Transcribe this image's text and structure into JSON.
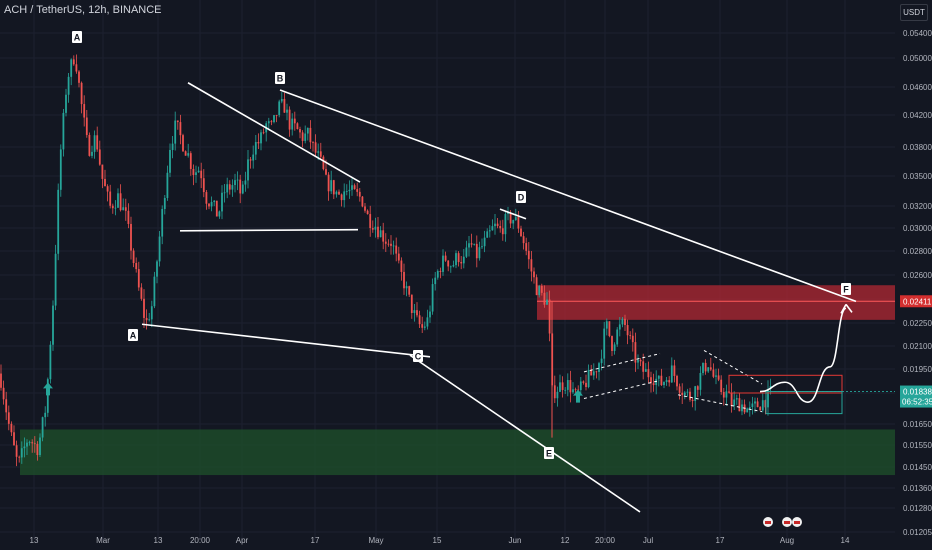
{
  "header": {
    "symbol_title": "ACH / TetherUS, 12h, BINANCE",
    "currency": "USDT"
  },
  "colors": {
    "background": "#131722",
    "up": "#26a69a",
    "down": "#ef5350",
    "drawing": "#ffffff",
    "resistance_zone": "#b22833",
    "support_zone": "#1e4d2b",
    "target_label": "#d32f2f",
    "price_label": "#26a69a"
  },
  "chart_data": {
    "type": "candlestick",
    "y_scale": "log",
    "ylim": [
      0.01205,
      0.0565
    ],
    "y_ticks": [
      "0.05400",
      "0.05000",
      "0.04600",
      "0.04200",
      "0.03800",
      "0.03500",
      "0.03200",
      "0.03000",
      "0.02800",
      "0.02600",
      "0.02400",
      "0.02250",
      "0.02100",
      "0.01950",
      "0.01800",
      "0.01650",
      "0.01550",
      "0.01450",
      "0.01360",
      "0.01280",
      "0.01205"
    ],
    "x_ticks": [
      "13",
      "Mar",
      "13",
      "20:00",
      "Apr",
      "17",
      "May",
      "15",
      "Jun",
      "12",
      "20:00",
      "Jul",
      "17",
      "Aug",
      "14"
    ],
    "price_path": [
      [
        0,
        0.0194
      ],
      [
        10,
        0.0163
      ],
      [
        18,
        0.0147
      ],
      [
        28,
        0.016
      ],
      [
        38,
        0.0155
      ],
      [
        46,
        0.0176
      ],
      [
        53,
        0.024
      ],
      [
        60,
        0.037
      ],
      [
        67,
        0.047
      ],
      [
        75,
        0.0508
      ],
      [
        82,
        0.043
      ],
      [
        88,
        0.038
      ],
      [
        96,
        0.0395
      ],
      [
        102,
        0.035
      ],
      [
        110,
        0.032
      ],
      [
        118,
        0.033
      ],
      [
        126,
        0.031
      ],
      [
        134,
        0.027
      ],
      [
        140,
        0.0245
      ],
      [
        146,
        0.0225
      ],
      [
        152,
        0.0238
      ],
      [
        158,
        0.028
      ],
      [
        164,
        0.033
      ],
      [
        170,
        0.0385
      ],
      [
        176,
        0.041
      ],
      [
        182,
        0.039
      ],
      [
        188,
        0.0375
      ],
      [
        194,
        0.0355
      ],
      [
        200,
        0.036
      ],
      [
        206,
        0.033
      ],
      [
        212,
        0.0322
      ],
      [
        218,
        0.0312
      ],
      [
        224,
        0.0335
      ],
      [
        230,
        0.034
      ],
      [
        236,
        0.0345
      ],
      [
        242,
        0.033
      ],
      [
        248,
        0.0365
      ],
      [
        254,
        0.0385
      ],
      [
        260,
        0.039
      ],
      [
        266,
        0.041
      ],
      [
        272,
        0.0405
      ],
      [
        278,
        0.043
      ],
      [
        284,
        0.0435
      ],
      [
        290,
        0.041
      ],
      [
        296,
        0.0405
      ],
      [
        302,
        0.0395
      ],
      [
        308,
        0.0398
      ],
      [
        314,
        0.038
      ],
      [
        320,
        0.0368
      ],
      [
        326,
        0.0345
      ],
      [
        332,
        0.034
      ],
      [
        338,
        0.0332
      ],
      [
        344,
        0.0336
      ],
      [
        350,
        0.0335
      ],
      [
        356,
        0.0332
      ],
      [
        362,
        0.0328
      ],
      [
        368,
        0.031
      ],
      [
        374,
        0.0305
      ],
      [
        380,
        0.0297
      ],
      [
        386,
        0.029
      ],
      [
        392,
        0.0288
      ],
      [
        398,
        0.0268
      ],
      [
        404,
        0.0255
      ],
      [
        410,
        0.024
      ],
      [
        416,
        0.0228
      ],
      [
        422,
        0.0222
      ],
      [
        428,
        0.0228
      ],
      [
        434,
        0.0255
      ],
      [
        440,
        0.0268
      ],
      [
        446,
        0.0275
      ],
      [
        452,
        0.0268
      ],
      [
        458,
        0.0277
      ],
      [
        464,
        0.0272
      ],
      [
        470,
        0.0288
      ],
      [
        476,
        0.0276
      ],
      [
        482,
        0.0284
      ],
      [
        488,
        0.0292
      ],
      [
        494,
        0.0302
      ],
      [
        500,
        0.0298
      ],
      [
        506,
        0.0307
      ],
      [
        512,
        0.031
      ],
      [
        518,
        0.0304
      ],
      [
        524,
        0.0288
      ],
      [
        530,
        0.0268
      ],
      [
        536,
        0.0252
      ],
      [
        542,
        0.0245
      ],
      [
        548,
        0.024
      ],
      [
        552,
        0.0183
      ],
      [
        558,
        0.0186
      ],
      [
        564,
        0.0189
      ],
      [
        570,
        0.0187
      ],
      [
        576,
        0.0181
      ],
      [
        582,
        0.0186
      ],
      [
        588,
        0.0191
      ],
      [
        594,
        0.0195
      ],
      [
        600,
        0.0202
      ],
      [
        606,
        0.0225
      ],
      [
        612,
        0.0212
      ],
      [
        618,
        0.0221
      ],
      [
        624,
        0.0226
      ],
      [
        630,
        0.0214
      ],
      [
        636,
        0.0202
      ],
      [
        642,
        0.0196
      ],
      [
        648,
        0.0194
      ],
      [
        654,
        0.0192
      ],
      [
        660,
        0.0188
      ],
      [
        666,
        0.0191
      ],
      [
        672,
        0.0196
      ],
      [
        678,
        0.0189
      ],
      [
        684,
        0.0183
      ],
      [
        690,
        0.0181
      ],
      [
        696,
        0.0186
      ],
      [
        702,
        0.0195
      ],
      [
        708,
        0.0201
      ],
      [
        714,
        0.0191
      ],
      [
        720,
        0.0185
      ],
      [
        726,
        0.0183
      ],
      [
        732,
        0.0177
      ],
      [
        738,
        0.0178
      ],
      [
        744,
        0.0176
      ],
      [
        750,
        0.0173
      ],
      [
        756,
        0.0176
      ],
      [
        762,
        0.0178
      ],
      [
        768,
        0.0181
      ],
      [
        772,
        0.01838
      ]
    ],
    "drawings": {
      "trendlines": [
        {
          "from": [
            280,
            0.0455
          ],
          "to": [
            856,
            0.0241
          ]
        },
        {
          "from": [
            142,
            0.0225
          ],
          "to": [
            430,
            0.0204
          ]
        },
        {
          "from": [
            410,
            0.0205
          ],
          "to": [
            640,
            0.0128
          ]
        },
        {
          "from": [
            188,
            0.0465
          ],
          "to": [
            360,
            0.0345
          ]
        },
        {
          "from": [
            180,
            0.0298
          ],
          "to": [
            358,
            0.0299
          ]
        },
        {
          "from": [
            500,
            0.0318
          ],
          "to": [
            526,
            0.0309
          ]
        }
      ],
      "resistance_zone": {
        "x0": 537,
        "x1": 895,
        "y_top": 0.0253,
        "y_bottom": 0.0228,
        "midline": 0.02411
      },
      "support_zone": {
        "x0": 20,
        "x1": 895,
        "y_top": 0.0164,
        "y_bottom": 0.0143
      },
      "channel_1": [
        [
          [
            584,
            0.0195
          ],
          [
            660,
            0.0206
          ]
        ],
        [
          [
            584,
            0.018
          ],
          [
            660,
            0.019
          ]
        ]
      ],
      "channel_2": [
        [
          [
            678,
            0.0182
          ],
          [
            762,
            0.0173
          ]
        ],
        [
          [
            704,
            0.0208
          ],
          [
            762,
            0.0188
          ]
        ]
      ],
      "target_box_red": {
        "x0": 729,
        "x1": 842,
        "y0": 0.0193,
        "y1": 0.0183
      },
      "target_box_green": {
        "x0": 766,
        "x1": 842,
        "y0": 0.01838,
        "y1": 0.0172
      },
      "projection_path": [
        [
          760,
          0.01838
        ],
        [
          785,
          0.0189
        ],
        [
          808,
          0.0178
        ],
        [
          830,
          0.0198
        ],
        [
          846,
          0.0236
        ]
      ],
      "arrows_up": [
        [
          48,
          0.0185
        ],
        [
          578,
          0.0181
        ]
      ]
    },
    "wave_labels": [
      "A",
      "B",
      "A",
      "C",
      "D",
      "E",
      "F"
    ],
    "last_price": "0.01838",
    "countdown": "06:52:35",
    "target_price": "0.02411"
  }
}
